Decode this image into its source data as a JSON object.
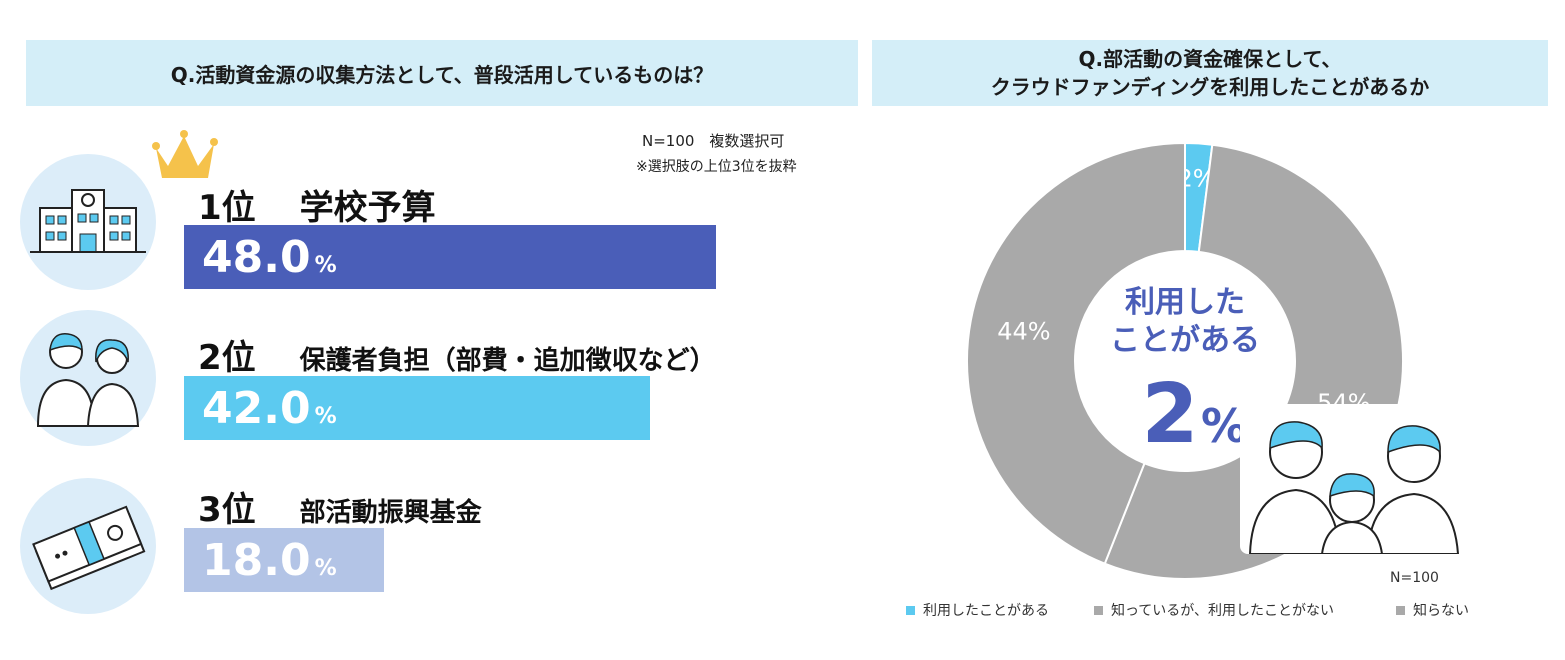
{
  "left": {
    "question": "Q.活動資金源の収集方法として、普段活用しているものは？",
    "note1": "N=100　複数選択可",
    "note2": "※選択肢の上位3位を抜粋",
    "ranks": [
      {
        "rank": "1位",
        "label": "学校予算",
        "value": "48.0",
        "unit": "%",
        "icon": "school-building-icon",
        "color": "#4a5eb8"
      },
      {
        "rank": "2位",
        "label": "保護者負担（部費・追加徴収など）",
        "value": "42.0",
        "unit": "%",
        "icon": "parents-icon",
        "color": "#5ccaf0"
      },
      {
        "rank": "3位",
        "label": "部活動振興基金",
        "value": "18.0",
        "unit": "%",
        "icon": "banknotes-icon",
        "color": "#b3c4e6"
      }
    ]
  },
  "right": {
    "question_line1": "Q.部活動の資金確保として、",
    "question_line2": "クラウドファンディングを利用したことがあるか",
    "center_line1": "利用した",
    "center_line2": "ことがある",
    "center_value": "2",
    "center_unit": "%",
    "n_note": "N=100"
  },
  "chart_data": [
    {
      "type": "bar",
      "categories": [
        "学校予算",
        "保護者負担（部費・追加徴収など）",
        "部活動振興基金"
      ],
      "values": [
        48.0,
        42.0,
        18.0
      ],
      "unit": "%"
    },
    {
      "type": "pie",
      "donut": true,
      "series": [
        {
          "name": "利用したことがある",
          "value": 2,
          "label": "2%",
          "color": "#5ccaf0"
        },
        {
          "name": "知っているが、利用したことがない",
          "value": 54,
          "label": "54%",
          "color": "#a9a9a9"
        },
        {
          "name": "知らない",
          "value": 44,
          "label": "44%",
          "color": "#a9a9a9"
        }
      ],
      "legend_position": "bottom"
    }
  ]
}
